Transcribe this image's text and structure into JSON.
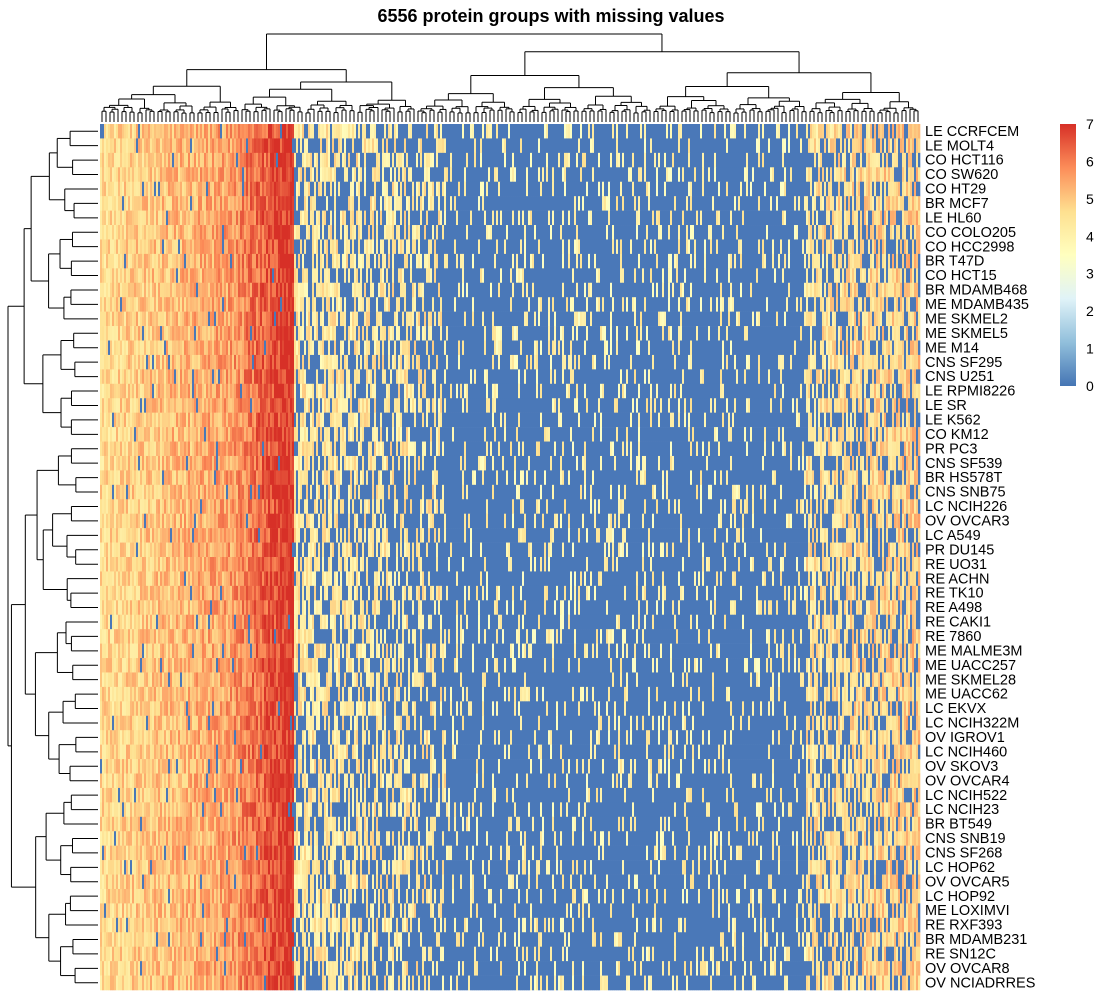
{
  "chart_data": {
    "type": "heatmap",
    "title": "6556 protein groups with missing values",
    "n_columns": 6556,
    "rows": [
      "LE CCRFCEM",
      "LE MOLT4",
      "CO HCT116",
      "CO SW620",
      "CO HT29",
      "BR MCF7",
      "LE HL60",
      "CO COLO205",
      "CO HCC2998",
      "BR T47D",
      "CO HCT15",
      "BR MDAMB468",
      "ME MDAMB435",
      "ME SKMEL2",
      "ME SKMEL5",
      "ME M14",
      "CNS SF295",
      "CNS U251",
      "LE RPMI8226",
      "LE SR",
      "LE K562",
      "CO KM12",
      "PR PC3",
      "CNS SF539",
      "BR HS578T",
      "CNS SNB75",
      "LC NCIH226",
      "OV OVCAR3",
      "LC A549",
      "PR DU145",
      "RE UO31",
      "RE ACHN",
      "RE TK10",
      "RE A498",
      "RE CAKI1",
      "RE 7860",
      "ME MALME3M",
      "ME UACC257",
      "ME SKMEL28",
      "ME UACC62",
      "LC EKVX",
      "LC NCIH322M",
      "OV IGROV1",
      "LC NCIH460",
      "OV SKOV3",
      "OV OVCAR4",
      "LC NCIH522",
      "LC NCIH23",
      "BR BT549",
      "CNS SNB19",
      "CNS SF268",
      "LC HOP62",
      "OV OVCAR5",
      "LC HOP92",
      "ME LOXIMVI",
      "RE RXF393",
      "BR MDAMB231",
      "RE SN12C",
      "OV OVCAR8",
      "OV NCIADRRES"
    ],
    "legend": {
      "min": 0,
      "max": 7,
      "ticks": [
        "0",
        "1",
        "2",
        "3",
        "4",
        "5",
        "6",
        "7"
      ],
      "colors": [
        "#4575b4",
        "#91bfdb",
        "#e0f3f8",
        "#ffffbf",
        "#fee090",
        "#fc8d59",
        "#d73027"
      ]
    },
    "missing_color": "#4a78b8",
    "row_dendrogram": true,
    "column_dendrogram": true
  }
}
